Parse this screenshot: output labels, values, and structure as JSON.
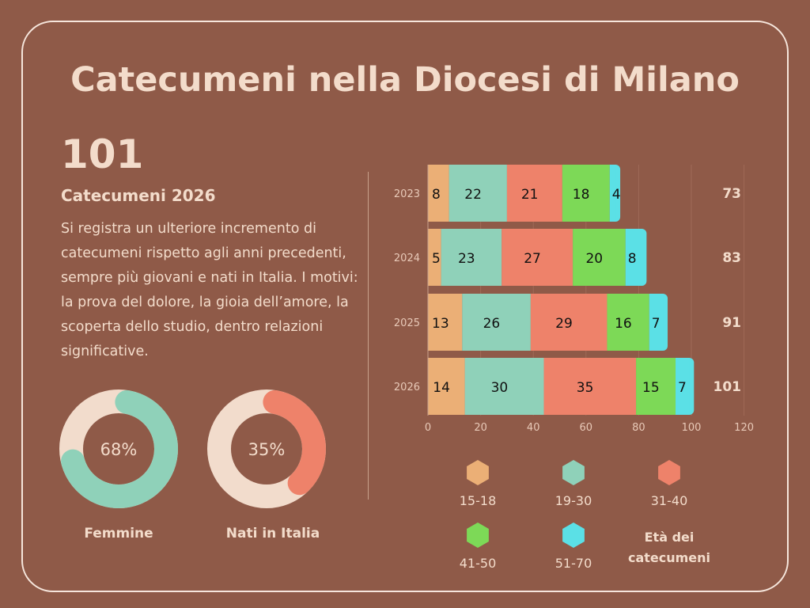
{
  "title": "Catecumeni nella Diocesi di Milano",
  "headline": {
    "value": "101",
    "subtitle": "Catecumeni 2026",
    "description": "Si registra un ulteriore incremento di catecumeni rispetto agli anni precedenti, sempre più giovani e nati in Italia. I motivi: la prova del dolore, la gioia dell’amore, la scoperta dello studio, dentro relazioni significative."
  },
  "donuts": [
    {
      "label": "Femmine",
      "value_text": "68%",
      "value": 68,
      "color": "#8fd1b9"
    },
    {
      "label": "Nati in Italia",
      "value_text": "35%",
      "value": 35,
      "color": "#ee826a"
    }
  ],
  "chart_data": {
    "type": "bar",
    "orientation": "horizontal-stacked",
    "categories": [
      "2023",
      "2024",
      "2025",
      "2026"
    ],
    "series": [
      {
        "name": "15-18",
        "color": "#ebaf76",
        "values": [
          8,
          5,
          13,
          14
        ]
      },
      {
        "name": "19-30",
        "color": "#8fd1b9",
        "values": [
          22,
          23,
          26,
          30
        ]
      },
      {
        "name": "31-40",
        "color": "#ee826a",
        "values": [
          21,
          27,
          29,
          35
        ]
      },
      {
        "name": "41-50",
        "color": "#7dd957",
        "values": [
          18,
          20,
          16,
          15
        ]
      },
      {
        "name": "51-70",
        "color": "#5be0e6",
        "values": [
          4,
          8,
          7,
          7
        ]
      }
    ],
    "totals": [
      "73",
      "83",
      "91",
      "101"
    ],
    "xticks": [
      "0",
      "20",
      "40",
      "60",
      "80",
      "100",
      "120"
    ],
    "xlim": [
      0,
      120
    ],
    "legend_title": "Età dei catecumeni",
    "legend_placement": "bottom"
  }
}
